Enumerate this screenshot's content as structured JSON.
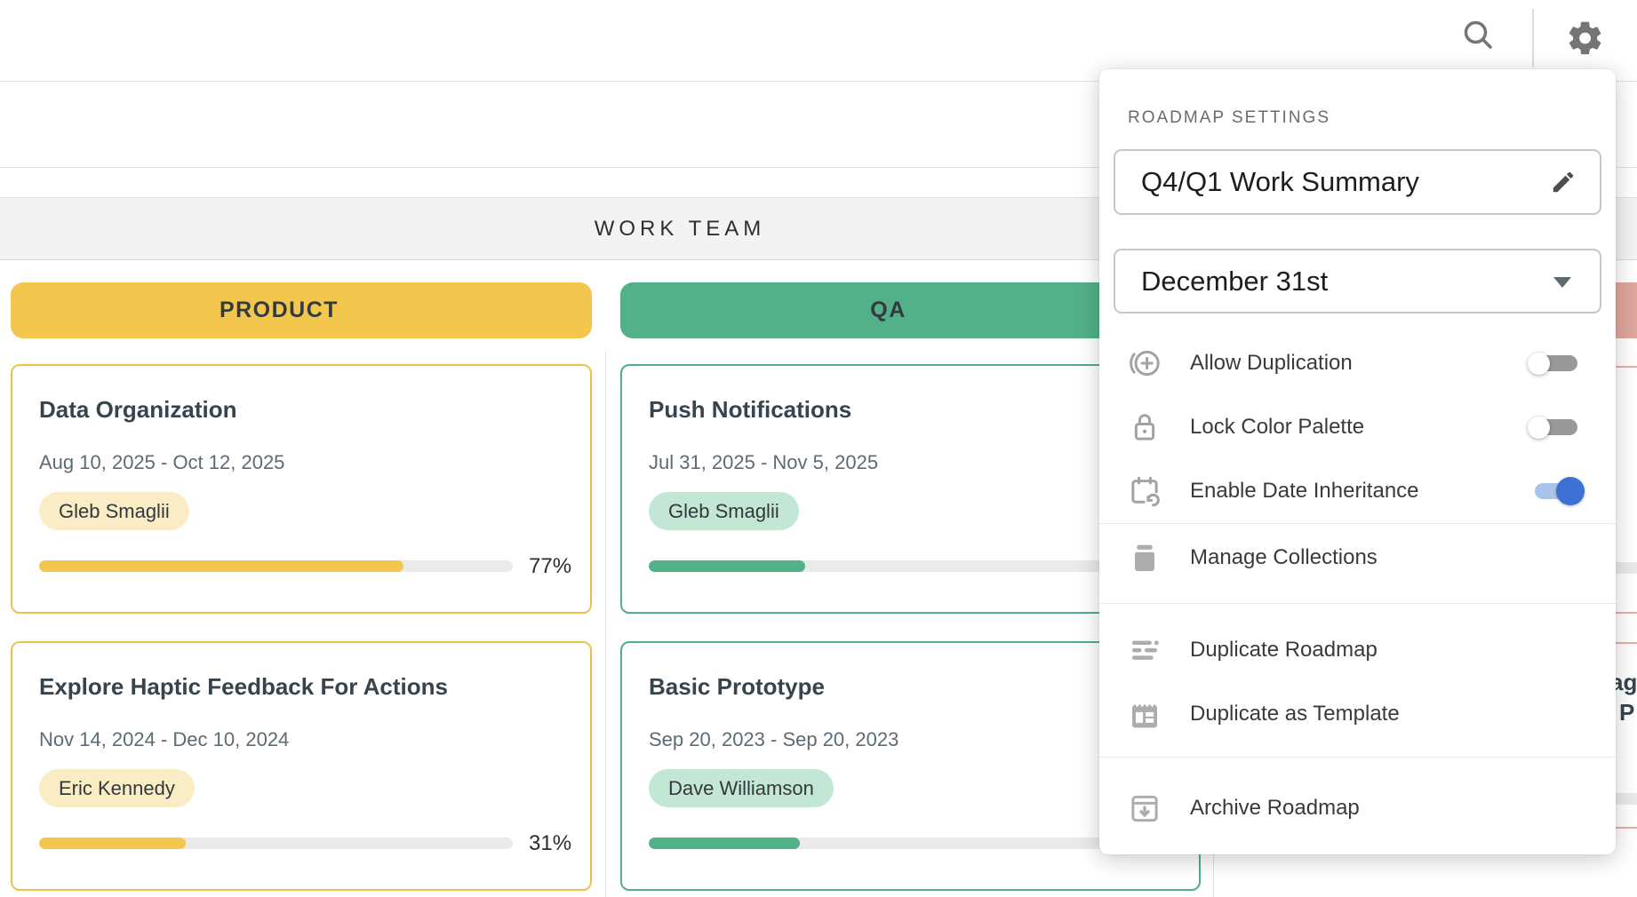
{
  "topbar": {
    "icons": [
      {
        "name": "search-icon"
      },
      {
        "name": "gear-icon"
      }
    ]
  },
  "group_band": {
    "label": "WORK TEAM"
  },
  "columns": [
    {
      "label": "PRODUCT",
      "color": "#F3C74D",
      "badge_bg": "#FAECC5",
      "cards": [
        {
          "title": "Data Organization",
          "dates": "Aug 10, 2025 - Oct 12, 2025",
          "assignee": "Gleb Smaglii",
          "progress_pct": 77,
          "progress_label": "77%"
        },
        {
          "title": "Explore Haptic Feedback For Actions",
          "dates": "Nov 14, 2024 - Dec 10, 2024",
          "assignee": "Eric Kennedy",
          "progress_pct": 31,
          "progress_label": "31%"
        }
      ]
    },
    {
      "label": "QA",
      "color": "#52B189",
      "badge_bg": "#C3E7D5",
      "cards": [
        {
          "title": "Push Notifications",
          "dates": "Jul 31, 2025 - Nov 5, 2025",
          "assignee": "Gleb Smaglii",
          "progress_pct": 33
        },
        {
          "title": "Basic Prototype",
          "dates": "Sep 20, 2023 - Sep 20, 2023",
          "assignee": "Dave Williamson",
          "progress_pct": 32
        }
      ]
    },
    {
      "label": "",
      "color": "#E0A79C",
      "partial": true,
      "visible_title_fragments": [
        "ag",
        "P"
      ]
    }
  ],
  "settings_panel": {
    "heading": "ROADMAP SETTINGS",
    "roadmap_name": "Q4/Q1 Work Summary",
    "fiscal_year_end": "December 31st",
    "toggles": [
      {
        "label": "Allow Duplication",
        "state": "off",
        "icon": "duplicate-circle-icon"
      },
      {
        "label": "Lock Color Palette",
        "state": "off",
        "icon": "lock-icon"
      },
      {
        "label": "Enable Date Inheritance",
        "state": "on",
        "icon": "calendar-history-icon"
      }
    ],
    "menu": [
      {
        "label": "Manage Collections",
        "icon": "collection-icon"
      },
      {
        "label": "Duplicate Roadmap",
        "icon": "duplicate-rows-icon"
      },
      {
        "label": "Duplicate as Template",
        "icon": "template-icon"
      },
      {
        "label": "Archive Roadmap",
        "icon": "archive-icon"
      }
    ]
  },
  "colors": {
    "toggle_on_blue": "#3D71D3",
    "toggle_on_track": "#A9C4EA",
    "toggle_off_track": "#999999",
    "product_yellow": "#F3C74D",
    "qa_green": "#52B189",
    "third_column_pink": "#E0A79C",
    "band_bg": "#F3F3F3"
  }
}
